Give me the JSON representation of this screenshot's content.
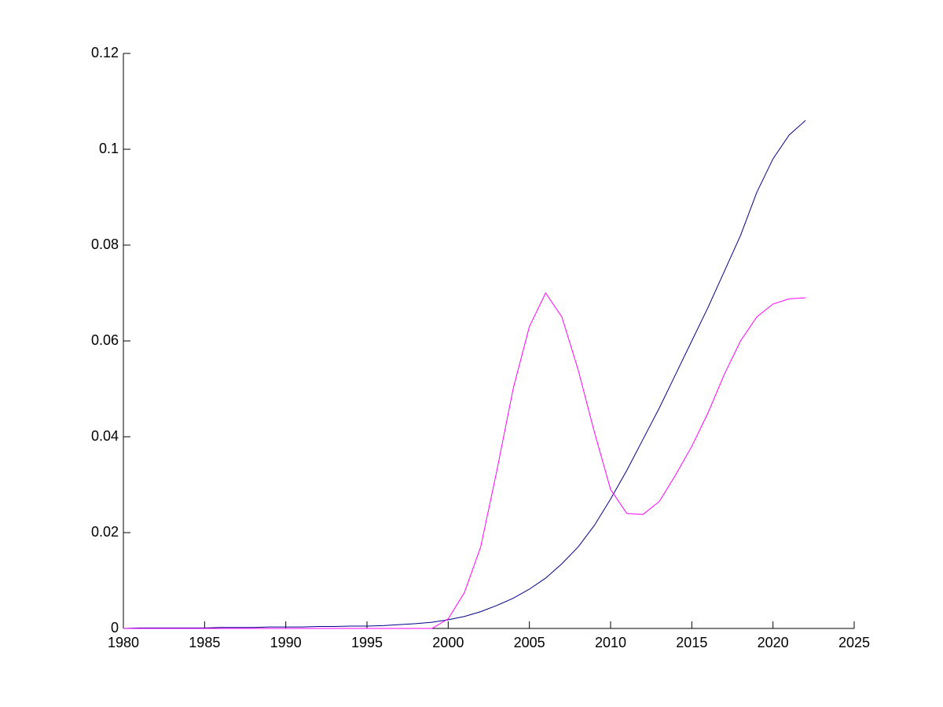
{
  "chart_data": {
    "type": "line",
    "x": [
      1980,
      1981,
      1982,
      1983,
      1984,
      1985,
      1986,
      1987,
      1988,
      1989,
      1990,
      1991,
      1992,
      1993,
      1994,
      1995,
      1996,
      1997,
      1998,
      1999,
      2000,
      2001,
      2002,
      2003,
      2004,
      2005,
      2006,
      2007,
      2008,
      2009,
      2010,
      2011,
      2012,
      2013,
      2014,
      2015,
      2016,
      2017,
      2018,
      2019,
      2020,
      2021,
      2022
    ],
    "series": [
      {
        "color": "#00008b",
        "values": [
          0,
          0.0001,
          0.0001,
          0.0001,
          0.0001,
          0.0001,
          0.0002,
          0.0002,
          0.0002,
          0.0003,
          0.0003,
          0.0003,
          0.0004,
          0.0004,
          0.0005,
          0.0005,
          0.0006,
          0.0008,
          0.001,
          0.0013,
          0.0018,
          0.0025,
          0.0035,
          0.0048,
          0.0063,
          0.0082,
          0.0105,
          0.0135,
          0.017,
          0.0215,
          0.027,
          0.033,
          0.0395,
          0.046,
          0.053,
          0.06,
          0.067,
          0.0745,
          0.082,
          0.091,
          0.098,
          0.103,
          0.106
        ]
      },
      {
        "color": "#ff00ff",
        "values": [
          0,
          0,
          0,
          0,
          0,
          0,
          0,
          0,
          0,
          0,
          0,
          0,
          0,
          0,
          0,
          0,
          0,
          0,
          0,
          0,
          0.002,
          0.0075,
          0.017,
          0.033,
          0.05,
          0.063,
          0.07,
          0.065,
          0.054,
          0.041,
          0.029,
          0.024,
          0.0238,
          0.0265,
          0.032,
          0.038,
          0.045,
          0.053,
          0.06,
          0.065,
          0.0677,
          0.0688,
          0.069
        ]
      }
    ],
    "xlim": [
      1980,
      2025
    ],
    "xticks": [
      1980,
      1985,
      1990,
      1995,
      2000,
      2005,
      2010,
      2015,
      2020,
      2025
    ],
    "ylim": [
      0,
      0.12
    ],
    "yticks": [
      0,
      0.02,
      0.04,
      0.06,
      0.08,
      0.1,
      0.12
    ],
    "grid": false
  }
}
